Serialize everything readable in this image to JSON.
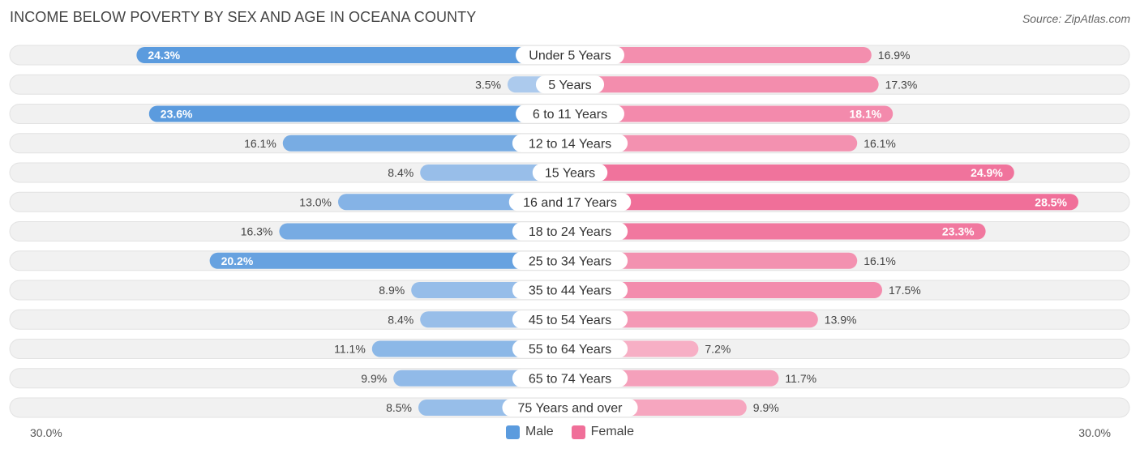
{
  "title": "INCOME BELOW POVERTY BY SEX AND AGE IN OCEANA COUNTY",
  "source": "Source: ZipAtlas.com",
  "axis": {
    "left_label": "30.0%",
    "right_label": "30.0%"
  },
  "legend": {
    "male": "Male",
    "female": "Female"
  },
  "colors": {
    "male_strong": "#5b9bde",
    "male_light": "#aecbed",
    "female_strong": "#f06f99",
    "female_light": "#f7b3c8",
    "track": "#f1f1f1"
  },
  "chart_data": {
    "type": "bar",
    "orientation": "horizontal-diverging",
    "title": "INCOME BELOW POVERTY BY SEX AND AGE IN OCEANA COUNTY",
    "xlim": [
      0,
      30
    ],
    "categories": [
      "Under 5 Years",
      "5 Years",
      "6 to 11 Years",
      "12 to 14 Years",
      "15 Years",
      "16 and 17 Years",
      "18 to 24 Years",
      "25 to 34 Years",
      "35 to 44 Years",
      "45 to 54 Years",
      "55 to 64 Years",
      "65 to 74 Years",
      "75 Years and over"
    ],
    "series": [
      {
        "name": "Male",
        "side": "left",
        "values": [
          24.3,
          3.5,
          23.6,
          16.1,
          8.4,
          13.0,
          16.3,
          20.2,
          8.9,
          8.4,
          11.1,
          9.9,
          8.5
        ],
        "labels": [
          "24.3%",
          "3.5%",
          "23.6%",
          "16.1%",
          "8.4%",
          "13.0%",
          "16.3%",
          "20.2%",
          "8.9%",
          "8.4%",
          "11.1%",
          "9.9%",
          "8.5%"
        ]
      },
      {
        "name": "Female",
        "side": "right",
        "values": [
          16.9,
          17.3,
          18.1,
          16.1,
          24.9,
          28.5,
          23.3,
          16.1,
          17.5,
          13.9,
          7.2,
          11.7,
          9.9
        ],
        "labels": [
          "16.9%",
          "17.3%",
          "18.1%",
          "16.1%",
          "24.9%",
          "28.5%",
          "23.3%",
          "16.1%",
          "17.5%",
          "13.9%",
          "7.2%",
          "11.7%",
          "9.9%"
        ]
      }
    ]
  }
}
